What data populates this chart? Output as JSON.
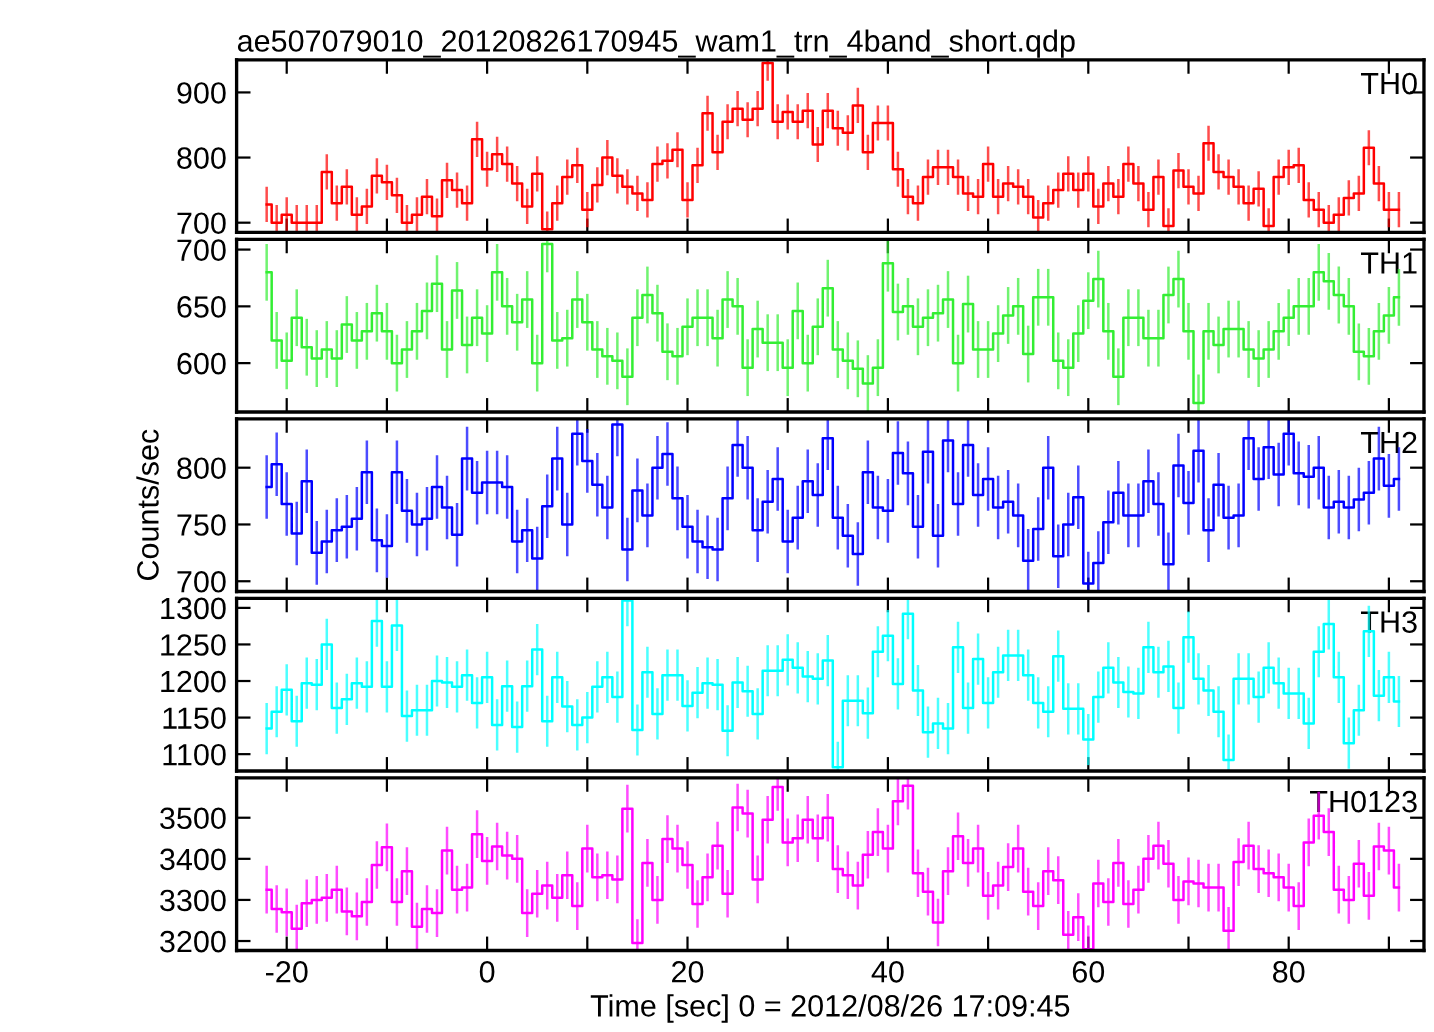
{
  "chart_data": [
    {
      "type": "step",
      "title": "ae507079010_20120826170945_wam1_trn_4band_short.qdp",
      "tick_labels": "y",
      "x": [
        -22,
        -21,
        -20,
        -19,
        -18,
        -17,
        -16,
        -15,
        -14,
        -13,
        -12,
        -11,
        -10,
        -9,
        -8,
        -7,
        -6,
        -5,
        -4,
        -3,
        -2,
        -1,
        0,
        1,
        2,
        3,
        4,
        5,
        6,
        7,
        8,
        9,
        10,
        11,
        12,
        13,
        14,
        15,
        16,
        17,
        18,
        19,
        20,
        21,
        22,
        23,
        24,
        25,
        26,
        27,
        28,
        29,
        30,
        31,
        32,
        33,
        34,
        35,
        36,
        37,
        38,
        39,
        40,
        41,
        42,
        43,
        44,
        45,
        46,
        47,
        48,
        49,
        50,
        51,
        52,
        53,
        54,
        55,
        56,
        57,
        58,
        59,
        60,
        61,
        62,
        63,
        64,
        65,
        66,
        67,
        68,
        69,
        70,
        71,
        72,
        73,
        74,
        75,
        76,
        77,
        78,
        79,
        80,
        81,
        82,
        83,
        84,
        85,
        86,
        87,
        88,
        89,
        90,
        91
      ],
      "xlim": [
        -25,
        93.5
      ],
      "ylim": [
        685,
        950
      ],
      "yticks": [
        700,
        800,
        900
      ],
      "series": [
        {
          "name": "TH0",
          "color": "#ff0000",
          "values": [
            728,
            700,
            712,
            700,
            700,
            700,
            778,
            730,
            755,
            712,
            725,
            772,
            762,
            742,
            700,
            712,
            740,
            710,
            765,
            750,
            730,
            828,
            782,
            805,
            790,
            760,
            725,
            775,
            690,
            730,
            770,
            788,
            720,
            758,
            800,
            772,
            755,
            745,
            735,
            790,
            795,
            812,
            735,
            788,
            868,
            808,
            855,
            875,
            858,
            875,
            945,
            855,
            870,
            855,
            872,
            820,
            872,
            845,
            838,
            880,
            808,
            853,
            853,
            782,
            740,
            730,
            770,
            785,
            785,
            770,
            745,
            740,
            790,
            740,
            760,
            755,
            740,
            708,
            730,
            750,
            775,
            750,
            775,
            725,
            760,
            740,
            790,
            760,
            720,
            770,
            695,
            780,
            755,
            745,
            822,
            778,
            770,
            755,
            730,
            752,
            695,
            770,
            785,
            788,
            735,
            720,
            700,
            712,
            738,
            745,
            815,
            760,
            720,
            720
          ],
          "errors": [
            27,
            27,
            27,
            27,
            27,
            27,
            27,
            27,
            27,
            27,
            27,
            27,
            27,
            27,
            27,
            27,
            27,
            27,
            27,
            27,
            27,
            27,
            27,
            27,
            27,
            27,
            27,
            27,
            27,
            27,
            27,
            27,
            27,
            27,
            27,
            27,
            27,
            27,
            27,
            27,
            27,
            27,
            27,
            27,
            27,
            27,
            27,
            27,
            27,
            27,
            27,
            27,
            27,
            27,
            27,
            27,
            27,
            27,
            27,
            27,
            27,
            27,
            27,
            27,
            27,
            27,
            27,
            27,
            27,
            27,
            27,
            27,
            27,
            27,
            27,
            27,
            27,
            27,
            27,
            27,
            27,
            27,
            27,
            27,
            27,
            27,
            27,
            27,
            27,
            27,
            27,
            27,
            27,
            27,
            27,
            27,
            27,
            27,
            27,
            27,
            27,
            27,
            27,
            27,
            27,
            27,
            27,
            27,
            27,
            27,
            27,
            27,
            27,
            27
          ]
        }
      ]
    },
    {
      "type": "step",
      "tick_labels": "y",
      "x": [
        -22,
        -21,
        -20,
        -19,
        -18,
        -17,
        -16,
        -15,
        -14,
        -13,
        -12,
        -11,
        -10,
        -9,
        -8,
        -7,
        -6,
        -5,
        -4,
        -3,
        -2,
        -1,
        0,
        1,
        2,
        3,
        4,
        5,
        6,
        7,
        8,
        9,
        10,
        11,
        12,
        13,
        14,
        15,
        16,
        17,
        18,
        19,
        20,
        21,
        22,
        23,
        24,
        25,
        26,
        27,
        28,
        29,
        30,
        31,
        32,
        33,
        34,
        35,
        36,
        37,
        38,
        39,
        40,
        41,
        42,
        43,
        44,
        45,
        46,
        47,
        48,
        49,
        50,
        51,
        52,
        53,
        54,
        55,
        56,
        57,
        58,
        59,
        60,
        61,
        62,
        63,
        64,
        65,
        66,
        67,
        68,
        69,
        70,
        71,
        72,
        73,
        74,
        75,
        76,
        77,
        78,
        79,
        80,
        81,
        82,
        83,
        84,
        85,
        86,
        87,
        88,
        89,
        90,
        91
      ],
      "xlim": [
        -25,
        93.5
      ],
      "ylim": [
        557,
        709
      ],
      "yticks": [
        600,
        650,
        700
      ],
      "series": [
        {
          "name": "TH1",
          "color": "#33ee33",
          "values": [
            680,
            620,
            602,
            640,
            614,
            604,
            612,
            604,
            634,
            620,
            628,
            644,
            628,
            600,
            612,
            628,
            646,
            670,
            612,
            664,
            616,
            640,
            626,
            680,
            650,
            636,
            656,
            600,
            705,
            620,
            622,
            656,
            636,
            612,
            606,
            602,
            588,
            640,
            660,
            644,
            610,
            606,
            632,
            640,
            640,
            622,
            656,
            650,
            596,
            630,
            618,
            618,
            596,
            646,
            600,
            632,
            666,
            612,
            602,
            595,
            582,
            596,
            688,
            645,
            650,
            632,
            640,
            644,
            656,
            600,
            652,
            612,
            612,
            626,
            642,
            650,
            608,
            658,
            658,
            602,
            596,
            626,
            655,
            674,
            628,
            588,
            640,
            640,
            622,
            622,
            660,
            674,
            628,
            565,
            628,
            616,
            630,
            630,
            612,
            604,
            612,
            628,
            640,
            650,
            650,
            680,
            672,
            660,
            650,
            610,
            606,
            628,
            642,
            658
          ],
          "errors": [
            25,
            25,
            25,
            25,
            25,
            25,
            25,
            25,
            25,
            25,
            25,
            25,
            25,
            25,
            25,
            25,
            25,
            25,
            25,
            25,
            25,
            25,
            25,
            25,
            25,
            25,
            25,
            25,
            25,
            25,
            25,
            25,
            25,
            25,
            25,
            25,
            25,
            25,
            25,
            25,
            25,
            25,
            25,
            25,
            25,
            25,
            25,
            25,
            25,
            25,
            25,
            25,
            25,
            25,
            25,
            25,
            25,
            25,
            25,
            25,
            25,
            25,
            25,
            25,
            25,
            25,
            25,
            25,
            25,
            25,
            25,
            25,
            25,
            25,
            25,
            25,
            25,
            25,
            25,
            25,
            25,
            25,
            25,
            25,
            25,
            25,
            25,
            25,
            25,
            25,
            25,
            25,
            25,
            25,
            25,
            25,
            25,
            25,
            25,
            25,
            25,
            25,
            25,
            25,
            25,
            25,
            25,
            25,
            25,
            25,
            25,
            25,
            25,
            25
          ]
        }
      ]
    },
    {
      "type": "step",
      "ylabel": "Counts/sec",
      "tick_labels": "y",
      "x": [
        -22,
        -21,
        -20,
        -19,
        -18,
        -17,
        -16,
        -15,
        -14,
        -13,
        -12,
        -11,
        -10,
        -9,
        -8,
        -7,
        -6,
        -5,
        -4,
        -3,
        -2,
        -1,
        0,
        1,
        2,
        3,
        4,
        5,
        6,
        7,
        8,
        9,
        10,
        11,
        12,
        13,
        14,
        15,
        16,
        17,
        18,
        19,
        20,
        21,
        22,
        23,
        24,
        25,
        26,
        27,
        28,
        29,
        30,
        31,
        32,
        33,
        34,
        35,
        36,
        37,
        38,
        39,
        40,
        41,
        42,
        43,
        44,
        45,
        46,
        47,
        48,
        49,
        50,
        51,
        52,
        53,
        54,
        55,
        56,
        57,
        58,
        59,
        60,
        61,
        62,
        63,
        64,
        65,
        66,
        67,
        68,
        69,
        70,
        71,
        72,
        73,
        74,
        75,
        76,
        77,
        78,
        79,
        80,
        81,
        82,
        83,
        84,
        85,
        86,
        87,
        88,
        89,
        90,
        91
      ],
      "xlim": [
        -25,
        93.5
      ],
      "ylim": [
        691,
        843
      ],
      "yticks": [
        700,
        750,
        800
      ],
      "series": [
        {
          "name": "TH2",
          "color": "#0000ff",
          "values": [
            783,
            803,
            768,
            742,
            788,
            725,
            735,
            745,
            748,
            755,
            796,
            736,
            731,
            796,
            762,
            750,
            755,
            783,
            765,
            741,
            808,
            778,
            787,
            787,
            783,
            735,
            745,
            720,
            766,
            808,
            750,
            830,
            806,
            785,
            765,
            838,
            728,
            780,
            758,
            800,
            812,
            773,
            748,
            735,
            730,
            728,
            773,
            820,
            800,
            745,
            770,
            790,
            735,
            756,
            788,
            776,
            826,
            756,
            740,
            724,
            796,
            765,
            762,
            813,
            795,
            748,
            814,
            740,
            824,
            768,
            820,
            776,
            790,
            765,
            770,
            758,
            718,
            746,
            800,
            722,
            750,
            774,
            698,
            716,
            752,
            778,
            758,
            758,
            788,
            768,
            715,
            802,
            769,
            815,
            745,
            785,
            756,
            758,
            826,
            790,
            818,
            794,
            830,
            795,
            792,
            800,
            765,
            770,
            765,
            772,
            778,
            808,
            784,
            790
          ],
          "errors": [
            28,
            28,
            28,
            28,
            28,
            28,
            28,
            28,
            28,
            28,
            28,
            28,
            28,
            28,
            28,
            28,
            28,
            28,
            28,
            28,
            28,
            28,
            28,
            28,
            28,
            28,
            28,
            28,
            28,
            28,
            28,
            28,
            28,
            28,
            28,
            28,
            28,
            28,
            28,
            28,
            28,
            28,
            28,
            28,
            28,
            28,
            28,
            28,
            28,
            28,
            28,
            28,
            28,
            28,
            28,
            28,
            28,
            28,
            28,
            28,
            28,
            28,
            28,
            28,
            28,
            28,
            28,
            28,
            28,
            28,
            28,
            28,
            28,
            28,
            28,
            28,
            28,
            28,
            28,
            28,
            28,
            28,
            28,
            28,
            28,
            28,
            28,
            28,
            28,
            28,
            28,
            28,
            28,
            28,
            28,
            28,
            28,
            28,
            28,
            28,
            28,
            28,
            28,
            28,
            28,
            28,
            28,
            28,
            28,
            28,
            28,
            28,
            28,
            28
          ]
        }
      ]
    },
    {
      "type": "step",
      "tick_labels": "y",
      "x": [
        -22,
        -21,
        -20,
        -19,
        -18,
        -17,
        -16,
        -15,
        -14,
        -13,
        -12,
        -11,
        -10,
        -9,
        -8,
        -7,
        -6,
        -5,
        -4,
        -3,
        -2,
        -1,
        0,
        1,
        2,
        3,
        4,
        5,
        6,
        7,
        8,
        9,
        10,
        11,
        12,
        13,
        14,
        15,
        16,
        17,
        18,
        19,
        20,
        21,
        22,
        23,
        24,
        25,
        26,
        27,
        28,
        29,
        30,
        31,
        32,
        33,
        34,
        35,
        36,
        37,
        38,
        39,
        40,
        41,
        42,
        43,
        44,
        45,
        46,
        47,
        48,
        49,
        50,
        51,
        52,
        53,
        54,
        55,
        56,
        57,
        58,
        59,
        60,
        61,
        62,
        63,
        64,
        65,
        66,
        67,
        68,
        69,
        70,
        71,
        72,
        73,
        74,
        75,
        76,
        77,
        78,
        79,
        80,
        81,
        82,
        83,
        84,
        85,
        86,
        87,
        88,
        89,
        90,
        91
      ],
      "xlim": [
        -25,
        93.5
      ],
      "ylim": [
        1077,
        1313
      ],
      "yticks": [
        1100,
        1150,
        1200,
        1250,
        1300
      ],
      "series": [
        {
          "name": "TH3",
          "color": "#00ffff",
          "values": [
            1135,
            1158,
            1188,
            1145,
            1197,
            1195,
            1250,
            1163,
            1175,
            1197,
            1192,
            1282,
            1192,
            1276,
            1152,
            1160,
            1160,
            1200,
            1198,
            1192,
            1208,
            1170,
            1205,
            1140,
            1193,
            1137,
            1193,
            1243,
            1145,
            1205,
            1165,
            1140,
            1150,
            1192,
            1205,
            1178,
            1310,
            1133,
            1212,
            1155,
            1208,
            1208,
            1166,
            1184,
            1197,
            1195,
            1132,
            1198,
            1186,
            1155,
            1214,
            1214,
            1229,
            1218,
            1206,
            1203,
            1228,
            1082,
            1173,
            1173,
            1156,
            1240,
            1262,
            1196,
            1292,
            1187,
            1130,
            1142,
            1135,
            1246,
            1163,
            1230,
            1170,
            1212,
            1235,
            1235,
            1208,
            1170,
            1158,
            1234,
            1162,
            1162,
            1120,
            1178,
            1218,
            1198,
            1185,
            1183,
            1246,
            1212,
            1220,
            1163,
            1260,
            1203,
            1187,
            1158,
            1092,
            1203,
            1203,
            1178,
            1218,
            1197,
            1183,
            1183,
            1142,
            1240,
            1278,
            1205,
            1115,
            1160,
            1268,
            1180,
            1205,
            1172
          ],
          "errors": [
            35,
            35,
            35,
            35,
            35,
            35,
            35,
            35,
            35,
            35,
            35,
            35,
            35,
            35,
            35,
            35,
            35,
            35,
            35,
            35,
            35,
            35,
            35,
            35,
            35,
            35,
            35,
            35,
            35,
            35,
            35,
            35,
            35,
            35,
            35,
            35,
            35,
            35,
            35,
            35,
            35,
            35,
            35,
            35,
            35,
            35,
            35,
            35,
            35,
            35,
            35,
            35,
            35,
            35,
            35,
            35,
            35,
            35,
            35,
            35,
            35,
            35,
            35,
            35,
            35,
            35,
            35,
            35,
            35,
            35,
            35,
            35,
            35,
            35,
            35,
            35,
            35,
            35,
            35,
            35,
            35,
            35,
            35,
            35,
            35,
            35,
            35,
            35,
            35,
            35,
            35,
            35,
            35,
            35,
            35,
            35,
            35,
            35,
            35,
            35,
            35,
            35,
            35,
            35,
            35,
            35,
            35,
            35,
            35,
            35,
            35,
            35,
            35,
            35
          ]
        }
      ]
    },
    {
      "type": "step",
      "xlabel": "Time [sec] 0 = 2012/08/26 17:09:45",
      "x": [
        -22,
        -21,
        -20,
        -19,
        -18,
        -17,
        -16,
        -15,
        -14,
        -13,
        -12,
        -11,
        -10,
        -9,
        -8,
        -7,
        -6,
        -5,
        -4,
        -3,
        -2,
        -1,
        0,
        1,
        2,
        3,
        4,
        5,
        6,
        7,
        8,
        9,
        10,
        11,
        12,
        13,
        14,
        15,
        16,
        17,
        18,
        19,
        20,
        21,
        22,
        23,
        24,
        25,
        26,
        27,
        28,
        29,
        30,
        31,
        32,
        33,
        34,
        35,
        36,
        37,
        38,
        39,
        40,
        41,
        42,
        43,
        44,
        45,
        46,
        47,
        48,
        49,
        50,
        51,
        52,
        53,
        54,
        55,
        56,
        57,
        58,
        59,
        60,
        61,
        62,
        63,
        64,
        65,
        66,
        67,
        68,
        69,
        70,
        71,
        72,
        73,
        74,
        75,
        76,
        77,
        78,
        79,
        80,
        81,
        82,
        83,
        84,
        85,
        86,
        87,
        88,
        89,
        90,
        91
      ],
      "xlim": [
        -25,
        93.5
      ],
      "xticks": [
        {
          "value": -20,
          "label": "-20"
        },
        {
          "value": -10,
          "label": null
        },
        {
          "value": 0,
          "label": "0"
        },
        {
          "value": 10,
          "label": null
        },
        {
          "value": 20,
          "label": "20"
        },
        {
          "value": 30,
          "label": null
        },
        {
          "value": 40,
          "label": "40"
        },
        {
          "value": 50,
          "label": null
        },
        {
          "value": 60,
          "label": "60"
        },
        {
          "value": 70,
          "label": null
        },
        {
          "value": 80,
          "label": "80"
        },
        {
          "value": 90,
          "label": null
        }
      ],
      "ylim": [
        3177,
        3597
      ],
      "yticks": [
        3200,
        3300,
        3400,
        3500
      ],
      "series": [
        {
          "name": "TH0123",
          "color": "#ff00ff",
          "values": [
            3325,
            3278,
            3270,
            3230,
            3292,
            3300,
            3305,
            3325,
            3272,
            3260,
            3295,
            3385,
            3428,
            3295,
            3370,
            3235,
            3278,
            3268,
            3420,
            3325,
            3330,
            3460,
            3395,
            3430,
            3408,
            3400,
            3268,
            3315,
            3335,
            3305,
            3360,
            3285,
            3425,
            3355,
            3360,
            3350,
            3522,
            3195,
            3390,
            3300,
            3448,
            3425,
            3385,
            3290,
            3355,
            3432,
            3315,
            3525,
            3510,
            3350,
            3495,
            3575,
            3440,
            3450,
            3495,
            3450,
            3500,
            3375,
            3360,
            3335,
            3410,
            3465,
            3425,
            3540,
            3578,
            3365,
            3320,
            3245,
            3370,
            3455,
            3390,
            3425,
            3310,
            3335,
            3380,
            3425,
            3320,
            3285,
            3370,
            3348,
            3215,
            3258,
            3180,
            3340,
            3295,
            3390,
            3290,
            3325,
            3400,
            3432,
            3388,
            3300,
            3345,
            3340,
            3330,
            3330,
            3225,
            3392,
            3432,
            3375,
            3365,
            3355,
            3330,
            3285,
            3440,
            3505,
            3465,
            3325,
            3300,
            3388,
            3310,
            3430,
            3420,
            3330
          ],
          "errors": [
            58,
            58,
            58,
            58,
            58,
            58,
            58,
            58,
            58,
            58,
            58,
            58,
            58,
            58,
            58,
            58,
            58,
            58,
            58,
            58,
            58,
            58,
            58,
            58,
            58,
            58,
            58,
            58,
            58,
            58,
            58,
            58,
            58,
            58,
            58,
            58,
            58,
            58,
            58,
            58,
            58,
            58,
            58,
            58,
            58,
            58,
            58,
            58,
            58,
            58,
            58,
            58,
            58,
            58,
            58,
            58,
            58,
            58,
            58,
            58,
            58,
            58,
            58,
            58,
            58,
            58,
            58,
            58,
            58,
            58,
            58,
            58,
            58,
            58,
            58,
            58,
            58,
            58,
            58,
            58,
            58,
            58,
            58,
            58,
            58,
            58,
            58,
            58,
            58,
            58,
            58,
            58,
            58,
            58,
            58,
            58,
            58,
            58,
            58,
            58,
            58,
            58,
            58,
            58,
            58,
            58,
            58,
            58,
            58,
            58,
            58,
            58,
            58,
            58
          ]
        }
      ]
    }
  ]
}
